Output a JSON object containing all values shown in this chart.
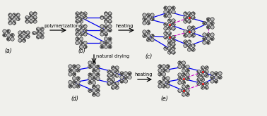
{
  "fig_width": 3.78,
  "fig_height": 1.65,
  "dpi": 100,
  "bg_color": "#f0f0ec",
  "mg_color": "#b8b8b8",
  "mg_edge": "#444444",
  "blue": "#0000ee",
  "red": "#ff0000",
  "magenta": "#cc00cc",
  "labels": [
    "(a)",
    "(b)",
    "(c)",
    "(d)",
    "(e)"
  ],
  "step_labels": [
    "polymerization",
    "heating",
    "natural drying",
    "heating"
  ],
  "lfs": 5.5,
  "sfs": 4.8
}
